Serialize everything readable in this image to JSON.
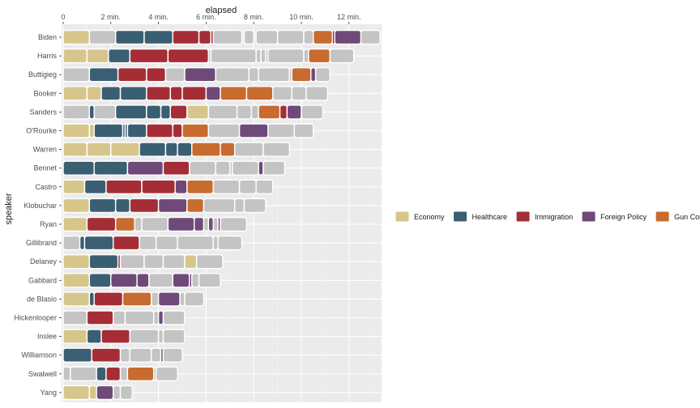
{
  "chart_data": {
    "type": "bar",
    "xlabel": "elapsed",
    "ylabel": "speaker",
    "xlim": [
      0,
      13.3
    ],
    "x_tick_values": [
      0,
      2,
      4,
      6,
      8,
      10,
      12
    ],
    "x_tick_labels": [
      "0",
      "2 min.",
      "4 min.",
      "6 min.",
      "8 min.",
      "10 min.",
      "12 min."
    ],
    "legend_position": "right",
    "legend": [
      {
        "topic": "Economy",
        "color": "#d6c68c"
      },
      {
        "topic": "Healthcare",
        "color": "#3a5f73"
      },
      {
        "topic": "Immigration",
        "color": "#a52e36"
      },
      {
        "topic": "Foreign Policy",
        "color": "#6f4a79"
      },
      {
        "topic": "Gun Control",
        "color": "#c86b2f"
      }
    ],
    "other_color": "#c4c4c4",
    "speakers": [
      {
        "name": "Biden",
        "segments": [
          [
            "Economy",
            0,
            1.1
          ],
          [
            "Other",
            1.1,
            2.2
          ],
          [
            "Healthcare",
            2.2,
            3.4
          ],
          [
            "Healthcare",
            3.4,
            4.6
          ],
          [
            "Immigration",
            4.6,
            5.7
          ],
          [
            "Immigration",
            5.7,
            6.2
          ],
          [
            "Immigration",
            6.2,
            6.3
          ],
          [
            "Other",
            6.3,
            7.5
          ],
          [
            "Other",
            7.6,
            8.0
          ],
          [
            "Other",
            8.1,
            9.0
          ],
          [
            "Other",
            9.0,
            10.1
          ],
          [
            "Other",
            10.1,
            10.5
          ],
          [
            "Gun Control",
            10.5,
            11.3
          ],
          [
            "Immigration",
            11.3,
            11.4
          ],
          [
            "Foreign Policy",
            11.4,
            12.5
          ],
          [
            "Other",
            12.5,
            13.3
          ]
        ]
      },
      {
        "name": "Harris",
        "segments": [
          [
            "Economy",
            0,
            1.0
          ],
          [
            "Economy",
            1.0,
            1.9
          ],
          [
            "Healthcare",
            1.9,
            2.8
          ],
          [
            "Immigration",
            2.8,
            4.4
          ],
          [
            "Immigration",
            4.4,
            6.1
          ],
          [
            "Other",
            6.1,
            6.2
          ],
          [
            "Other",
            6.2,
            8.1
          ],
          [
            "Other",
            8.1,
            8.3
          ],
          [
            "Other",
            8.3,
            8.5
          ],
          [
            "Other",
            8.5,
            8.6
          ],
          [
            "Other",
            8.6,
            10.1
          ],
          [
            "Other",
            10.1,
            10.3
          ],
          [
            "Gun Control",
            10.3,
            11.2
          ],
          [
            "Other",
            11.2,
            12.2
          ]
        ]
      },
      {
        "name": "Buttigieg",
        "segments": [
          [
            "Other",
            0,
            1.1
          ],
          [
            "Healthcare",
            1.1,
            2.3
          ],
          [
            "Immigration",
            2.3,
            3.5
          ],
          [
            "Immigration",
            3.5,
            4.3
          ],
          [
            "Other",
            4.3,
            5.1
          ],
          [
            "Foreign Policy",
            5.1,
            6.4
          ],
          [
            "Other",
            6.4,
            7.8
          ],
          [
            "Other",
            7.8,
            8.2
          ],
          [
            "Other",
            8.2,
            9.5
          ],
          [
            "Other",
            9.5,
            9.6
          ],
          [
            "Gun Control",
            9.6,
            10.4
          ],
          [
            "Foreign Policy",
            10.4,
            10.6
          ],
          [
            "Other",
            10.6,
            11.2
          ]
        ]
      },
      {
        "name": "Booker",
        "segments": [
          [
            "Economy",
            0,
            1.0
          ],
          [
            "Economy",
            1.0,
            1.6
          ],
          [
            "Healthcare",
            1.6,
            2.4
          ],
          [
            "Healthcare",
            2.4,
            3.5
          ],
          [
            "Immigration",
            3.5,
            4.5
          ],
          [
            "Immigration",
            4.5,
            5.0
          ],
          [
            "Immigration",
            5.0,
            6.0
          ],
          [
            "Foreign Policy",
            6.0,
            6.6
          ],
          [
            "Gun Control",
            6.6,
            7.7
          ],
          [
            "Gun Control",
            7.7,
            8.8
          ],
          [
            "Other",
            8.8,
            9.6
          ],
          [
            "Other",
            9.6,
            10.2
          ],
          [
            "Other",
            10.2,
            11.1
          ]
        ]
      },
      {
        "name": "Sanders",
        "segments": [
          [
            "Other",
            0,
            1.1
          ],
          [
            "Healthcare",
            1.1,
            1.3
          ],
          [
            "Other",
            1.3,
            2.2
          ],
          [
            "Healthcare",
            2.2,
            3.5
          ],
          [
            "Healthcare",
            3.5,
            4.1
          ],
          [
            "Healthcare",
            4.1,
            4.5
          ],
          [
            "Immigration",
            4.5,
            5.2
          ],
          [
            "Economy",
            5.2,
            6.1
          ],
          [
            "Other",
            6.1,
            7.3
          ],
          [
            "Other",
            7.3,
            7.9
          ],
          [
            "Other",
            7.9,
            8.2
          ],
          [
            "Gun Control",
            8.2,
            9.1
          ],
          [
            "Immigration",
            9.1,
            9.4
          ],
          [
            "Foreign Policy",
            9.4,
            10.0
          ],
          [
            "Other",
            10.0,
            10.9
          ]
        ]
      },
      {
        "name": "O'Rourke",
        "segments": [
          [
            "Economy",
            0,
            1.1
          ],
          [
            "Economy",
            1.1,
            1.3
          ],
          [
            "Healthcare",
            1.3,
            2.5
          ],
          [
            "Healthcare",
            2.5,
            2.6
          ],
          [
            "Healthcare",
            2.6,
            2.7
          ],
          [
            "Healthcare",
            2.7,
            3.5
          ],
          [
            "Immigration",
            3.5,
            4.6
          ],
          [
            "Immigration",
            4.6,
            5.0
          ],
          [
            "Gun Control",
            5.0,
            6.1
          ],
          [
            "Other",
            6.1,
            7.4
          ],
          [
            "Foreign Policy",
            7.4,
            8.6
          ],
          [
            "Other",
            8.6,
            9.7
          ],
          [
            "Other",
            9.7,
            10.5
          ]
        ]
      },
      {
        "name": "Warren",
        "segments": [
          [
            "Economy",
            0,
            1.0
          ],
          [
            "Economy",
            1.0,
            2.0
          ],
          [
            "Economy",
            2.0,
            3.2
          ],
          [
            "Healthcare",
            3.2,
            4.3
          ],
          [
            "Healthcare",
            4.3,
            4.8
          ],
          [
            "Healthcare",
            4.8,
            5.4
          ],
          [
            "Gun Control",
            5.4,
            6.6
          ],
          [
            "Gun Control",
            6.6,
            7.2
          ],
          [
            "Other",
            7.2,
            8.4
          ],
          [
            "Other",
            8.4,
            9.5
          ]
        ]
      },
      {
        "name": "Bennet",
        "segments": [
          [
            "Healthcare",
            0,
            1.3
          ],
          [
            "Healthcare",
            1.3,
            2.7
          ],
          [
            "Foreign Policy",
            2.7,
            4.2
          ],
          [
            "Immigration",
            4.2,
            5.3
          ],
          [
            "Other",
            5.3,
            6.4
          ],
          [
            "Other",
            6.4,
            7.0
          ],
          [
            "Other",
            7.0,
            7.1
          ],
          [
            "Other",
            7.1,
            8.2
          ],
          [
            "Foreign Policy",
            8.2,
            8.4
          ],
          [
            "Other",
            8.4,
            9.3
          ]
        ]
      },
      {
        "name": "Castro",
        "segments": [
          [
            "Economy",
            0,
            0.9
          ],
          [
            "Healthcare",
            0.9,
            1.8
          ],
          [
            "Immigration",
            1.8,
            3.3
          ],
          [
            "Immigration",
            3.3,
            4.7
          ],
          [
            "Foreign Policy",
            4.7,
            5.2
          ],
          [
            "Gun Control",
            5.2,
            6.3
          ],
          [
            "Other",
            6.3,
            7.4
          ],
          [
            "Other",
            7.4,
            8.1
          ],
          [
            "Other",
            8.1,
            8.8
          ]
        ]
      },
      {
        "name": "Klobuchar",
        "segments": [
          [
            "Economy",
            0,
            1.1
          ],
          [
            "Healthcare",
            1.1,
            2.2
          ],
          [
            "Healthcare",
            2.2,
            2.8
          ],
          [
            "Immigration",
            2.8,
            4.0
          ],
          [
            "Foreign Policy",
            4.0,
            5.2
          ],
          [
            "Gun Control",
            5.2,
            5.9
          ],
          [
            "Other",
            5.9,
            7.2
          ],
          [
            "Other",
            7.2,
            7.6
          ],
          [
            "Other",
            7.6,
            8.5
          ]
        ]
      },
      {
        "name": "Ryan",
        "segments": [
          [
            "Economy",
            0,
            1.0
          ],
          [
            "Immigration",
            1.0,
            2.2
          ],
          [
            "Gun Control",
            2.2,
            3.0
          ],
          [
            "Other",
            3.0,
            3.3
          ],
          [
            "Other",
            3.3,
            4.4
          ],
          [
            "Foreign Policy",
            4.4,
            5.5
          ],
          [
            "Foreign Policy",
            5.5,
            5.9
          ],
          [
            "Other",
            5.9,
            6.1
          ],
          [
            "Foreign Policy",
            6.1,
            6.3
          ],
          [
            "Other",
            6.3,
            6.5
          ],
          [
            "Foreign Policy",
            6.5,
            6.6
          ],
          [
            "Other",
            6.6,
            7.7
          ]
        ]
      },
      {
        "name": "Gillibrand",
        "segments": [
          [
            "Other",
            0,
            0.7
          ],
          [
            "Healthcare",
            0.7,
            0.9
          ],
          [
            "Healthcare",
            0.9,
            2.1
          ],
          [
            "Immigration",
            2.1,
            3.2
          ],
          [
            "Other",
            3.2,
            3.9
          ],
          [
            "Other",
            3.9,
            4.8
          ],
          [
            "Other",
            4.8,
            6.3
          ],
          [
            "Other",
            6.3,
            6.5
          ],
          [
            "Other",
            6.5,
            7.5
          ]
        ]
      },
      {
        "name": "Delaney",
        "segments": [
          [
            "Economy",
            0,
            1.1
          ],
          [
            "Healthcare",
            1.1,
            2.3
          ],
          [
            "Immigration",
            2.3,
            2.4
          ],
          [
            "Other",
            2.4,
            3.4
          ],
          [
            "Other",
            3.4,
            4.2
          ],
          [
            "Other",
            4.2,
            5.1
          ],
          [
            "Economy",
            5.1,
            5.6
          ],
          [
            "Other",
            5.6,
            6.7
          ]
        ]
      },
      {
        "name": "Gabbard",
        "segments": [
          [
            "Economy",
            0,
            1.1
          ],
          [
            "Healthcare",
            1.1,
            2.0
          ],
          [
            "Foreign Policy",
            2.0,
            3.1
          ],
          [
            "Foreign Policy",
            3.1,
            3.6
          ],
          [
            "Other",
            3.6,
            4.6
          ],
          [
            "Foreign Policy",
            4.6,
            5.3
          ],
          [
            "Foreign Policy",
            5.3,
            5.4
          ],
          [
            "Other",
            5.4,
            5.7
          ],
          [
            "Other",
            5.7,
            6.6
          ]
        ]
      },
      {
        "name": "de Blasio",
        "segments": [
          [
            "Economy",
            0,
            1.1
          ],
          [
            "Healthcare",
            1.1,
            1.3
          ],
          [
            "Immigration",
            1.3,
            2.5
          ],
          [
            "Gun Control",
            2.5,
            3.7
          ],
          [
            "Other",
            3.7,
            4.0
          ],
          [
            "Foreign Policy",
            4.0,
            4.9
          ],
          [
            "Other",
            4.9,
            5.1
          ],
          [
            "Other",
            5.1,
            5.9
          ]
        ]
      },
      {
        "name": "Hickenlooper",
        "segments": [
          [
            "Other",
            0,
            1.0
          ],
          [
            "Immigration",
            1.0,
            2.1
          ],
          [
            "Other",
            2.1,
            2.6
          ],
          [
            "Other",
            2.6,
            3.8
          ],
          [
            "Other",
            3.8,
            4.0
          ],
          [
            "Foreign Policy",
            4.0,
            4.2
          ],
          [
            "Other",
            4.2,
            5.1
          ]
        ]
      },
      {
        "name": "Inslee",
        "segments": [
          [
            "Economy",
            0,
            1.0
          ],
          [
            "Healthcare",
            1.0,
            1.6
          ],
          [
            "Immigration",
            1.6,
            2.8
          ],
          [
            "Other",
            2.8,
            4.0
          ],
          [
            "Other",
            4.0,
            4.2
          ],
          [
            "Other",
            4.2,
            5.1
          ]
        ]
      },
      {
        "name": "Williamson",
        "segments": [
          [
            "Healthcare",
            0,
            1.2
          ],
          [
            "Immigration",
            1.2,
            2.4
          ],
          [
            "Other",
            2.4,
            2.8
          ],
          [
            "Other",
            2.8,
            3.7
          ],
          [
            "Other",
            3.7,
            4.1
          ],
          [
            "Foreign Policy",
            4.1,
            4.2
          ],
          [
            "Other",
            4.2,
            5.0
          ]
        ]
      },
      {
        "name": "Swalwell",
        "segments": [
          [
            "Other",
            0,
            0.3
          ],
          [
            "Other",
            0.3,
            1.4
          ],
          [
            "Healthcare",
            1.4,
            1.8
          ],
          [
            "Immigration",
            1.8,
            2.4
          ],
          [
            "Other",
            2.4,
            2.7
          ],
          [
            "Gun Control",
            2.7,
            3.8
          ],
          [
            "Other",
            3.8,
            3.9
          ],
          [
            "Other",
            3.9,
            4.8
          ]
        ]
      },
      {
        "name": "Yang",
        "segments": [
          [
            "Economy",
            0,
            1.1
          ],
          [
            "Economy",
            1.1,
            1.4
          ],
          [
            "Foreign Policy",
            1.4,
            2.1
          ],
          [
            "Other",
            2.1,
            2.4
          ],
          [
            "Other",
            2.4,
            2.9
          ]
        ]
      }
    ]
  }
}
